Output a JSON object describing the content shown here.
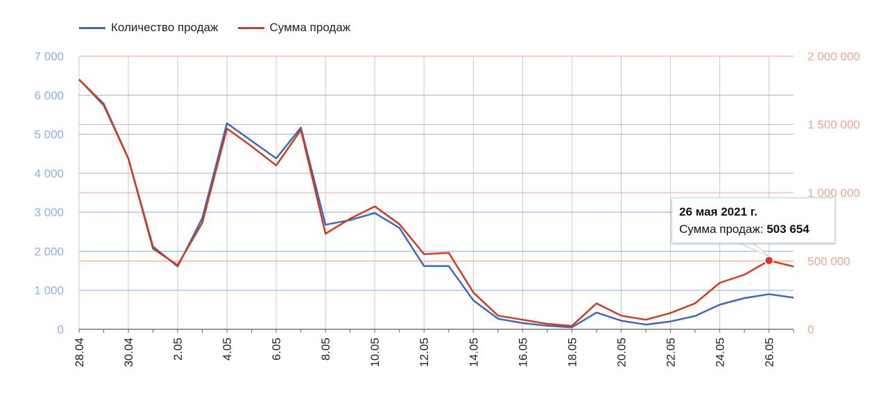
{
  "legend": {
    "items": [
      {
        "label": "Количество продаж",
        "color": "#3a66c4"
      },
      {
        "label": "Сумма продаж",
        "color": "#d43a1a"
      }
    ]
  },
  "tooltip": {
    "date": "26 мая 2021 г.",
    "label": "Сумма продаж:",
    "value": "503 654"
  },
  "chart_data": {
    "type": "line",
    "categories": [
      "28.04",
      "29.04",
      "30.04",
      "1.05",
      "2.05",
      "3.05",
      "4.05",
      "5.05",
      "6.05",
      "7.05",
      "8.05",
      "9.05",
      "10.05",
      "11.05",
      "12.05",
      "13.05",
      "14.05",
      "15.05",
      "16.05",
      "17.05",
      "18.05",
      "19.05",
      "20.05",
      "21.05",
      "22.05",
      "23.05",
      "24.05",
      "25.05",
      "26.05",
      "27.05"
    ],
    "x_tick_labels": [
      "28.04",
      "30.04",
      "2.05",
      "4.05",
      "6.05",
      "8.05",
      "10.05",
      "12.05",
      "14.05",
      "16.05",
      "18.05",
      "20.05",
      "22.05",
      "24.05",
      "26.05"
    ],
    "series": [
      {
        "name": "Количество продаж",
        "axis": "left",
        "color": "#3a66c4",
        "values": [
          6400,
          5780,
          4380,
          2120,
          1610,
          2850,
          5280,
          4830,
          4380,
          5170,
          2680,
          2800,
          2980,
          2600,
          1620,
          1620,
          740,
          270,
          160,
          90,
          50,
          430,
          220,
          120,
          200,
          340,
          630,
          800,
          900,
          810
        ]
      },
      {
        "name": "Сумма продаж",
        "axis": "right",
        "color": "#d43a1a",
        "values": [
          1830000,
          1640000,
          1250000,
          590000,
          470000,
          780000,
          1470000,
          1340000,
          1200000,
          1460000,
          700000,
          810000,
          900000,
          770000,
          550000,
          560000,
          270000,
          100000,
          70000,
          40000,
          25000,
          190000,
          100000,
          70000,
          120000,
          190000,
          340000,
          400000,
          503654,
          460000
        ]
      }
    ],
    "y_left": {
      "min": 0,
      "max": 7000,
      "ticks": [
        0,
        1000,
        2000,
        3000,
        4000,
        5000,
        6000,
        7000
      ],
      "tick_labels": [
        "0",
        "1 000",
        "2 000",
        "3 000",
        "4 000",
        "5 000",
        "6 000",
        "7 000"
      ],
      "color": "#8fb0e3"
    },
    "y_right": {
      "min": 0,
      "max": 2000000,
      "ticks": [
        0,
        500000,
        1000000,
        1500000,
        2000000
      ],
      "tick_labels": [
        "0",
        "500 000",
        "1 000 000",
        "1 500 000",
        "2 000 000"
      ],
      "color": "#f0a58f"
    },
    "grid": true,
    "legend_position": "top-left",
    "highlight": {
      "series": "Сумма продаж",
      "category": "26.05"
    }
  }
}
